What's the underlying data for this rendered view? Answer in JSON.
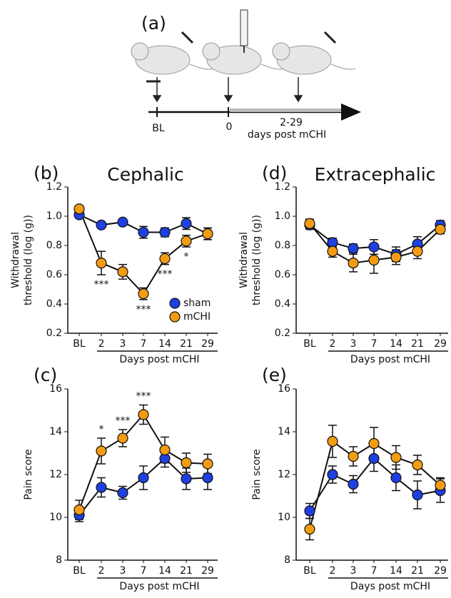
{
  "diagram": {
    "label": "(a)",
    "timeline": [
      "BL",
      "0",
      "2-29"
    ],
    "caption": "days post mCHI"
  },
  "chart_data": [
    {
      "type": "line",
      "panel": "(b)",
      "title": "Cephalic",
      "categories": [
        "BL",
        "2",
        "3",
        "7",
        "14",
        "21",
        "29"
      ],
      "series": [
        {
          "name": "sham",
          "color": "#1f3fe0",
          "values": [
            1.01,
            0.94,
            0.96,
            0.89,
            0.89,
            0.95,
            0.88
          ],
          "errors": [
            0.02,
            0.02,
            0.02,
            0.04,
            0.03,
            0.04,
            0.04
          ]
        },
        {
          "name": "mCHI",
          "color": "#f39c12",
          "values": [
            1.05,
            0.68,
            0.62,
            0.47,
            0.71,
            0.83,
            0.88
          ],
          "errors": [
            0.02,
            0.08,
            0.05,
            0.04,
            0.04,
            0.04,
            0.04
          ]
        }
      ],
      "ylim": [
        0.2,
        1.2
      ],
      "yticks": [
        0.2,
        0.4,
        0.6,
        0.8,
        {
          "value": 1.0,
          "label": "1.0"
        },
        1.2
      ],
      "ylabel": [
        "Withdrawal",
        "threshold (log (g))"
      ],
      "xlabel": "Days post mCHI",
      "legend": "lower right",
      "annotations": [
        {
          "text": "***",
          "x": "2",
          "position": "below"
        },
        {
          "text": "***",
          "x": "7",
          "position": "below"
        },
        {
          "text": "***",
          "x": "14",
          "position": "below"
        },
        {
          "text": "*",
          "x": "21",
          "position": "below"
        }
      ]
    },
    {
      "type": "line",
      "panel": "(c)",
      "categories": [
        "BL",
        "2",
        "3",
        "7",
        "14",
        "21",
        "29"
      ],
      "series": [
        {
          "color": "#1f3fe0",
          "values": [
            10.1,
            11.4,
            11.15,
            11.85,
            12.75,
            11.8,
            11.85
          ],
          "errors": [
            0.3,
            0.45,
            0.3,
            0.55,
            0.4,
            0.5,
            0.55
          ]
        },
        {
          "color": "#f39c12",
          "values": [
            10.35,
            13.1,
            13.7,
            14.8,
            13.15,
            12.55,
            12.5
          ],
          "errors": [
            0.45,
            0.6,
            0.4,
            0.45,
            0.6,
            0.45,
            0.45
          ]
        }
      ],
      "ylim": [
        8,
        16
      ],
      "yticks": [
        8,
        10,
        12,
        14,
        16
      ],
      "ylabel": [
        "Pain score"
      ],
      "xlabel": "Days post mCHI",
      "annotations": [
        {
          "text": "*",
          "x": "2",
          "position": "above"
        },
        {
          "text": "***",
          "x": "3",
          "position": "above"
        },
        {
          "text": "***",
          "x": "7",
          "position": "above"
        }
      ]
    },
    {
      "type": "line",
      "panel": "(d)",
      "title": "Extracephalic",
      "categories": [
        "BL",
        "2",
        "3",
        "7",
        "14",
        "21",
        "29"
      ],
      "series": [
        {
          "color": "#1f3fe0",
          "values": [
            0.94,
            0.82,
            0.78,
            0.79,
            0.74,
            0.81,
            0.94
          ],
          "errors": [
            0.03,
            0.03,
            0.03,
            0.05,
            0.05,
            0.05,
            0.03
          ]
        },
        {
          "color": "#f39c12",
          "values": [
            0.95,
            0.76,
            0.68,
            0.7,
            0.72,
            0.76,
            0.91
          ],
          "errors": [
            0.03,
            0.04,
            0.06,
            0.09,
            0.05,
            0.05,
            0.03
          ]
        }
      ],
      "ylim": [
        0.2,
        1.2
      ],
      "yticks": [
        0.2,
        0.4,
        0.6,
        0.8,
        {
          "value": 1.0,
          "label": "1.0"
        },
        1.2
      ],
      "ylabel": [
        "Withdrawal",
        "threshold (log (g))"
      ],
      "xlabel": "Days post mCHI"
    },
    {
      "type": "line",
      "panel": "(e)",
      "categories": [
        "BL",
        "2",
        "3",
        "7",
        "14",
        "21",
        "29"
      ],
      "series": [
        {
          "color": "#1f3fe0",
          "values": [
            10.3,
            12.0,
            11.55,
            12.75,
            11.85,
            11.05,
            11.25
          ],
          "errors": [
            0.35,
            0.4,
            0.4,
            0.6,
            0.6,
            0.65,
            0.55
          ]
        },
        {
          "color": "#f39c12",
          "values": [
            9.45,
            13.55,
            12.85,
            13.45,
            12.8,
            12.45,
            11.5
          ],
          "errors": [
            0.5,
            0.75,
            0.45,
            0.75,
            0.55,
            0.45,
            0.35
          ]
        }
      ],
      "ylim": [
        8,
        16
      ],
      "yticks": [
        8,
        10,
        12,
        14,
        16
      ],
      "ylabel": [
        "Pain score"
      ],
      "xlabel": "Days post mCHI"
    }
  ]
}
